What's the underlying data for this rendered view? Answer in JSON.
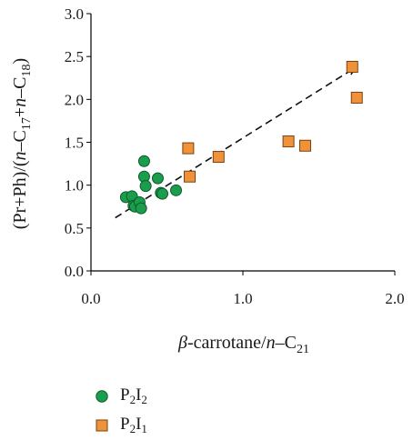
{
  "chart_data": {
    "type": "scatter",
    "title": "",
    "xlabel": {
      "italic_prefix": "β",
      "text": "-carrotane/",
      "italic_n": "n",
      "dash": "–C",
      "sub": "21"
    },
    "ylabel": {
      "parts": [
        "(Pr+Ph)/(",
        "n",
        "–C",
        "17",
        "+",
        "n",
        "–C",
        "18",
        ")"
      ]
    },
    "xlim": [
      0.0,
      2.0
    ],
    "ylim": [
      0.0,
      3.0
    ],
    "x_ticks": [
      "0.0",
      "1.0",
      "2.0"
    ],
    "y_ticks": [
      "0.0",
      "0.5",
      "1.0",
      "1.5",
      "2.0",
      "2.5",
      "3.0"
    ],
    "x_tick_values": [
      0.0,
      1.0,
      2.0
    ],
    "y_tick_values": [
      0.0,
      0.5,
      1.0,
      1.5,
      2.0,
      2.5,
      3.0
    ],
    "grid": false,
    "legend_placement": "bottom-left",
    "series": [
      {
        "name": "P2I2",
        "legend_main": "P",
        "legend_sub1": "2",
        "legend_mid": "I",
        "legend_sub2": "2",
        "marker": "circle",
        "color": "#1a9e4d",
        "x": [
          0.23,
          0.27,
          0.28,
          0.29,
          0.32,
          0.33,
          0.35,
          0.35,
          0.36,
          0.44,
          0.46,
          0.47,
          0.56
        ],
        "y": [
          0.86,
          0.87,
          0.76,
          0.75,
          0.8,
          0.73,
          1.28,
          1.1,
          0.99,
          1.08,
          0.91,
          0.9,
          0.94
        ]
      },
      {
        "name": "P2I1",
        "legend_main": "P",
        "legend_sub1": "2",
        "legend_mid": "I",
        "legend_sub2": "1",
        "marker": "square",
        "color": "#f0923a",
        "x": [
          0.64,
          0.65,
          0.84,
          1.3,
          1.41,
          1.72,
          1.75
        ],
        "y": [
          1.43,
          1.1,
          1.33,
          1.51,
          1.46,
          2.38,
          2.02
        ]
      }
    ],
    "trendline": {
      "style": "dashed",
      "x": [
        0.16,
        1.74
      ],
      "y": [
        0.62,
        2.37
      ]
    }
  }
}
